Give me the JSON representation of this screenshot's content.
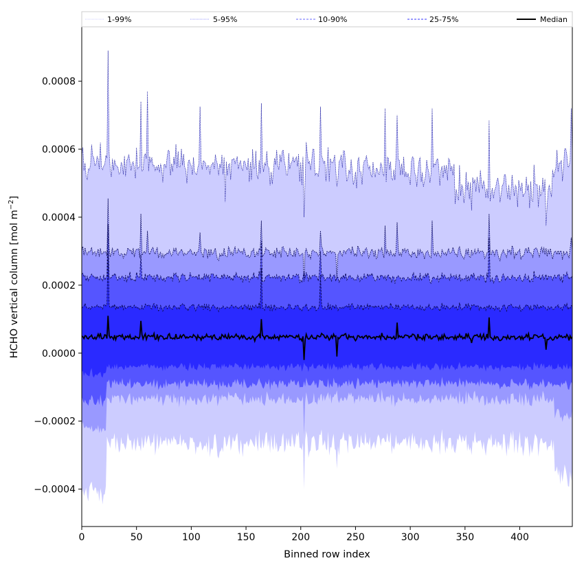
{
  "chart_data": {
    "type": "area",
    "xlabel": "Binned row index",
    "ylabel": "HCHO vertical column [mol m",
    "ylabel_sup": "−2",
    "ylabel_close": "]",
    "xlim": [
      0,
      448
    ],
    "ylim": [
      -0.00051,
      0.00096
    ],
    "x_ticks": [
      0,
      50,
      100,
      150,
      200,
      250,
      300,
      350,
      400
    ],
    "x_tick_labels": [
      "0",
      "50",
      "100",
      "150",
      "200",
      "250",
      "300",
      "350",
      "400"
    ],
    "y_ticks": [
      -0.0004,
      -0.0002,
      0.0,
      0.0002,
      0.0004,
      0.0006,
      0.0008
    ],
    "y_tick_labels": [
      "−0.0004",
      "−0.0002",
      "0.0000",
      "0.0002",
      "0.0004",
      "0.0006",
      "0.0008"
    ],
    "legend_position": "top",
    "legend": [
      {
        "label": "1-99%",
        "color": "#ccccff",
        "style": "dotted"
      },
      {
        "label": "5-95%",
        "color": "#9999ff",
        "style": "dotted"
      },
      {
        "label": "10-90%",
        "color": "#6666ff",
        "style": "dashed"
      },
      {
        "label": "25-75%",
        "color": "#3333ff",
        "style": "dashed"
      },
      {
        "label": "Median",
        "color": "#000000",
        "style": "solid"
      }
    ],
    "n_points": 449,
    "base_levels": {
      "p1": -0.000265,
      "p5": -0.000135,
      "p10": -9e-05,
      "p25": -4e-05,
      "median": 4.7e-05,
      "p75": 0.000135,
      "p90": 0.000222,
      "p95": 0.000295,
      "p99": 0.000555
    },
    "left_edge_override": {
      "x_end": 22,
      "p1": -0.00041,
      "p5": -0.00022,
      "p10": -0.00014,
      "p25": -6e-05
    },
    "right_edge_override": {
      "x_start": 432,
      "p1": -0.00036,
      "p5": -0.00018
    },
    "spikes": [
      {
        "x": 24,
        "p99": 0.00089,
        "p95": 0.000455,
        "p90": 0.00038,
        "p75": 0.0003,
        "median": 0.00011
      },
      {
        "x": 54,
        "p99": 0.00074,
        "p95": 0.00041,
        "p90": 0.00029,
        "median": 9.5e-05
      },
      {
        "x": 60,
        "p99": 0.00077,
        "p95": 0.00036
      },
      {
        "x": 108,
        "p99": 0.000725,
        "p95": 0.000355
      },
      {
        "x": 131,
        "p99": 0.000445
      },
      {
        "x": 164,
        "p99": 0.000735,
        "p95": 0.00039,
        "p90": 0.00033,
        "p75": 0.00025,
        "median": 0.0001
      },
      {
        "x": 203,
        "p99": 0.0004,
        "p95": 0.00021,
        "median": -2e-05,
        "p1": -0.0004,
        "p5": -0.00024
      },
      {
        "x": 218,
        "p99": 0.000725,
        "p95": 0.00036,
        "p90": 0.0003,
        "p75": 0.00023
      },
      {
        "x": 233,
        "p99": 0.00049,
        "p95": 0.00022,
        "median": -1e-05,
        "p1": -0.00034
      },
      {
        "x": 277,
        "p99": 0.00072,
        "p95": 0.000375
      },
      {
        "x": 288,
        "p99": 0.0007,
        "p95": 0.000385,
        "median": 9e-05
      },
      {
        "x": 320,
        "p99": 0.00072,
        "p95": 0.00039
      },
      {
        "x": 356,
        "p99": 0.00042,
        "median": 3e-05,
        "p1": -0.0003
      },
      {
        "x": 372,
        "p99": 0.000685,
        "p95": 0.00041,
        "p90": 0.00034,
        "median": 0.000105
      },
      {
        "x": 424,
        "p99": 0.000375,
        "median": 1e-05
      },
      {
        "x": 447,
        "p99": 0.00072,
        "p95": 0.00034
      }
    ],
    "band_colors": {
      "outer": "#ccccff",
      "p5_95": "#9999ff",
      "p10_90": "#5555ff",
      "p25_75": "#2a2aff"
    }
  }
}
